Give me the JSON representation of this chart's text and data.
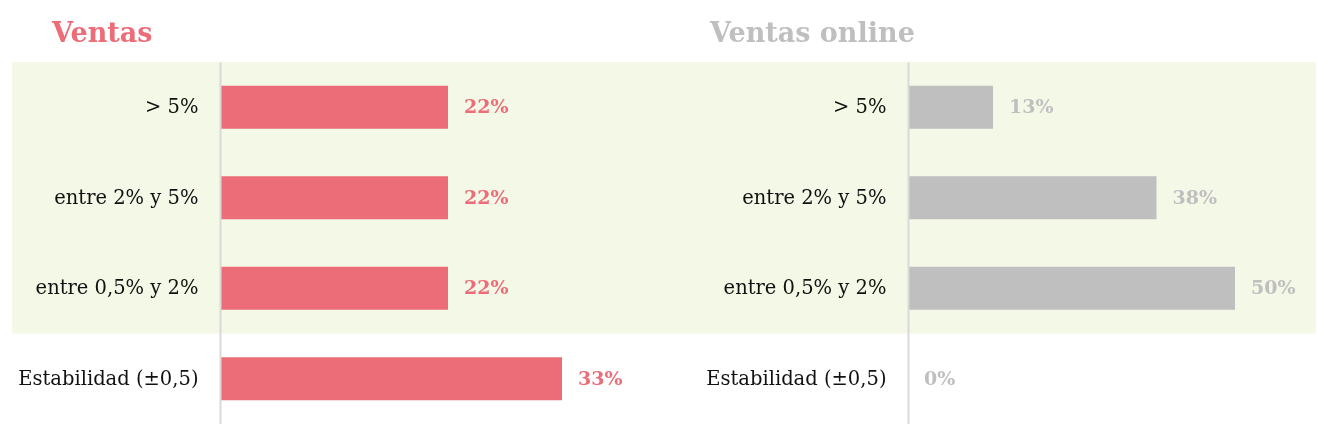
{
  "chart_data": [
    {
      "type": "bar",
      "orientation": "horizontal",
      "title": "Ventas",
      "categories": [
        "> 5%",
        "entre 2% y 5%",
        "entre 0,5% y 2%",
        "Estabilidad (±0,5)"
      ],
      "values": [
        22,
        22,
        22,
        33
      ],
      "value_labels": [
        "22%",
        "22%",
        "22%",
        "33%"
      ],
      "color": "#ec6c78",
      "bands": [
        {
          "axis": "y",
          "from": "> 5%",
          "to": "entre 0,5% y 2%",
          "color": "#f4f8e6"
        }
      ],
      "tick_labels": "y"
    },
    {
      "type": "bar",
      "orientation": "horizontal",
      "title": "Ventas online",
      "categories": [
        "> 5%",
        "entre 2% y 5%",
        "entre 0,5% y 2%",
        "Estabilidad (±0,5)"
      ],
      "values": [
        13,
        38,
        50,
        0
      ],
      "value_labels": [
        "13%",
        "38%",
        "50%",
        "0%"
      ],
      "color": "#bfbfbf",
      "bands": [
        {
          "axis": "y",
          "from": "> 5%",
          "to": "entre 0,5% y 2%",
          "color": "#f4f8e6"
        }
      ],
      "tick_labels": "y"
    }
  ]
}
